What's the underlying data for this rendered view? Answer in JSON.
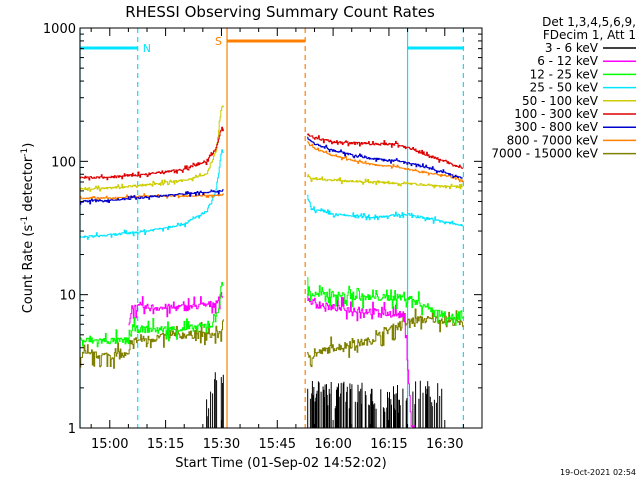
{
  "chart_data": {
    "type": "line",
    "title": "RHESSI Observing Summary Count Rates",
    "xlabel": "Start Time (01-Sep-02 14:52:02)",
    "ylabel": "Count Rate (s^-1 detector^-1)",
    "ylabel_parts": {
      "base": "Count Rate (s",
      "sup1": "-1",
      "mid": " detector",
      "sup2": "-1",
      "end": ")"
    },
    "yscale": "log",
    "ylim": [
      1,
      1000
    ],
    "xlim_minutes": [
      -8,
      100
    ],
    "x_tick_labels": [
      "15:00",
      "15:15",
      "15:30",
      "15:45",
      "16:00",
      "16:15",
      "16:30"
    ],
    "x_tick_minutes": [
      0,
      15,
      30,
      45,
      60,
      75,
      90
    ],
    "y_tick_labels": [
      "1",
      "10",
      "100",
      "1000"
    ],
    "y_tick_values": [
      1,
      10,
      100,
      1000
    ],
    "timestamp": "19-Oct-2021 02:54",
    "legend_header": [
      "Det 1,3,4,5,6,9,",
      "FDecim 1, Att 1"
    ],
    "legend_position": "right",
    "series": [
      {
        "name": "3 - 6 keV",
        "color": "#000000"
      },
      {
        "name": "6 - 12 keV",
        "color": "#ff00ff"
      },
      {
        "name": "12 - 25 keV",
        "color": "#00ff00"
      },
      {
        "name": "25 - 50 keV",
        "color": "#00e5ff"
      },
      {
        "name": "50 - 100 keV",
        "color": "#cccc00"
      },
      {
        "name": "100 - 300 keV",
        "color": "#dd0000"
      },
      {
        "name": "300 - 800 keV",
        "color": "#0000cc"
      },
      {
        "name": "800 - 7000 keV",
        "color": "#ff8000"
      },
      {
        "name": "7000 - 15000 keV",
        "color": "#808000"
      }
    ],
    "data_gap_minutes": [
      30.5,
      53.0
    ],
    "profiles": {
      "25 - 50 keV": {
        "minutes": [
          -8,
          0,
          10,
          20,
          26,
          28.5,
          30,
          53,
          54,
          60,
          70,
          80,
          90,
          95
        ],
        "values": [
          27,
          28,
          30,
          34,
          42,
          60,
          120,
          55,
          44,
          40,
          38,
          40,
          35,
          33
        ]
      },
      "50 - 100 keV": {
        "minutes": [
          -8,
          0,
          10,
          20,
          26,
          28.5,
          30,
          53,
          54,
          60,
          70,
          80,
          90,
          95
        ],
        "values": [
          62,
          63,
          67,
          72,
          80,
          120,
          260,
          80,
          74,
          72,
          70,
          68,
          65,
          64
        ]
      },
      "100 - 300 keV": {
        "minutes": [
          -8,
          0,
          10,
          20,
          26,
          28.5,
          30,
          53,
          55,
          60,
          70,
          77,
          82,
          90,
          95
        ],
        "values": [
          75,
          76,
          80,
          87,
          100,
          125,
          180,
          160,
          150,
          140,
          135,
          135,
          120,
          100,
          88
        ]
      },
      "300 - 800 keV": {
        "minutes": [
          -8,
          0,
          10,
          20,
          30,
          53,
          55,
          60,
          70,
          78,
          82,
          90,
          95
        ],
        "values": [
          50,
          51,
          54,
          57,
          60,
          150,
          135,
          120,
          105,
          100,
          95,
          82,
          74
        ]
      },
      "800 - 7000 keV": {
        "minutes": [
          -8,
          0,
          10,
          20,
          30,
          53,
          55,
          60,
          70,
          78,
          82,
          90,
          95
        ],
        "values": [
          53,
          53,
          55,
          55,
          56,
          140,
          125,
          110,
          95,
          90,
          85,
          78,
          72
        ]
      },
      "12 - 25 keV": {
        "minutes": [
          -8,
          5,
          6,
          20,
          28,
          29.5,
          30,
          53,
          54,
          60,
          70,
          80,
          90,
          95
        ],
        "values": [
          4.5,
          4.5,
          5.5,
          5.5,
          6,
          9,
          12,
          12,
          10,
          10,
          9.5,
          9.5,
          7,
          6.5
        ]
      },
      "6 - 12 keV": {
        "minutes": [
          5,
          6,
          20,
          28,
          30,
          53,
          55,
          60,
          70,
          79,
          80,
          81,
          82
        ],
        "values": [
          6,
          8,
          8,
          8.5,
          10,
          9.5,
          8.5,
          8,
          7.5,
          7,
          3,
          1,
          1
        ]
      },
      "7000 - 15000 keV": {
        "minutes": [
          -8,
          5,
          6,
          20,
          29,
          30,
          53,
          54,
          60,
          70,
          75,
          82,
          90,
          95
        ],
        "values": [
          3.5,
          3.5,
          4.5,
          5,
          5,
          5.5,
          3.5,
          3.5,
          4,
          4.5,
          5.5,
          6.5,
          6.5,
          6
        ]
      },
      "3 - 6 keV": {
        "minutes": [
          26,
          28,
          30,
          53,
          54,
          80,
          81,
          90
        ],
        "values": [
          1.3,
          2,
          2.5,
          1.5,
          1.8,
          1.6,
          1.8,
          1.8
        ]
      }
    },
    "overlays": {
      "labels": [
        "N",
        "S"
      ],
      "night_intervals_minutes": [
        [
          -8,
          7.5
        ],
        [
          80,
          95
        ]
      ],
      "saa_interval_minutes": [
        31.5,
        52.5
      ],
      "night_boundaries_minutes": [
        -8,
        7.5,
        80,
        95
      ],
      "saa_boundaries_minutes": [
        31.5,
        52.5
      ],
      "night_color": "#00e5ff",
      "saa_color": "#ff8000"
    }
  }
}
